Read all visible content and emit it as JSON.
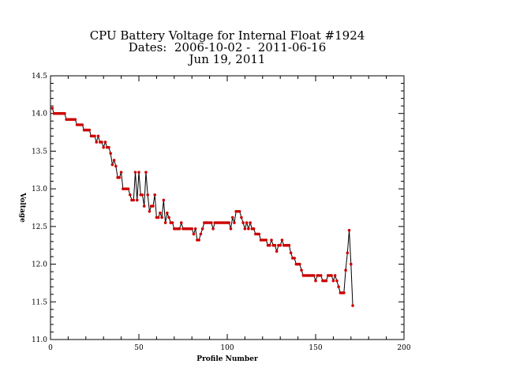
{
  "chart_data": {
    "type": "line",
    "title_lines": [
      "CPU Battery Voltage for Internal Float #1924",
      "Dates:  2006-10-02 -  2011-06-16",
      "Jun 19, 2011"
    ],
    "xlabel": "Profile Number",
    "ylabel": "Voltage",
    "xlim": [
      0,
      200
    ],
    "ylim": [
      11.0,
      14.5
    ],
    "x_ticks": [
      0,
      50,
      100,
      150,
      200
    ],
    "y_ticks": [
      11.0,
      11.5,
      12.0,
      12.5,
      13.0,
      13.5,
      14.0,
      14.5
    ],
    "x_tick_labels": [
      "0",
      "50",
      "100",
      "150",
      "200"
    ],
    "y_tick_labels": [
      "11.0",
      "11.5",
      "12.0",
      "12.5",
      "13.0",
      "13.5",
      "14.0",
      "14.5"
    ],
    "grid": false,
    "line_color": "#000000",
    "marker_color": "#cc0000",
    "series": [
      {
        "x": [
          1,
          2,
          3,
          4,
          5,
          6,
          7,
          8,
          9,
          10,
          11,
          12,
          13,
          14,
          15,
          16,
          17,
          18,
          19,
          20,
          21,
          22,
          23,
          24,
          25,
          26,
          27,
          28,
          29,
          30,
          31,
          32,
          33,
          34,
          35,
          36,
          37,
          38,
          39,
          40,
          41,
          42,
          43,
          44,
          45,
          46,
          47,
          48,
          49,
          50,
          51,
          52,
          53,
          54,
          55,
          56,
          57,
          58,
          59,
          60,
          61,
          62,
          63,
          64,
          65,
          66,
          67,
          68,
          69,
          70,
          71,
          72,
          73,
          74,
          75,
          76,
          77,
          78,
          79,
          80,
          81,
          82,
          83,
          84,
          85,
          86,
          87,
          88,
          89,
          90,
          91,
          92,
          93,
          94,
          95,
          96,
          97,
          98,
          99,
          100,
          101,
          102,
          103,
          104,
          105,
          106,
          107,
          108,
          109,
          110,
          111,
          112,
          113,
          114,
          115,
          116,
          117,
          118,
          119,
          120,
          121,
          122,
          123,
          124,
          125,
          126,
          127,
          128,
          129,
          130,
          131,
          132,
          133,
          134,
          135,
          136,
          137,
          138,
          139,
          140,
          141,
          142,
          143,
          144,
          145,
          146,
          147,
          148,
          149,
          150,
          151,
          152,
          153,
          154,
          155,
          156,
          157,
          158,
          159,
          160,
          161,
          162,
          163,
          164,
          165,
          166,
          167,
          168,
          169,
          170,
          171
        ],
        "y": [
          14.07,
          14.0,
          14.0,
          14.0,
          14.0,
          14.0,
          14.0,
          14.0,
          13.92,
          13.92,
          13.92,
          13.92,
          13.92,
          13.92,
          13.85,
          13.85,
          13.85,
          13.85,
          13.78,
          13.78,
          13.78,
          13.78,
          13.7,
          13.7,
          13.7,
          13.62,
          13.7,
          13.62,
          13.62,
          13.55,
          13.62,
          13.55,
          13.55,
          13.47,
          13.32,
          13.38,
          13.3,
          13.15,
          13.15,
          13.22,
          13.0,
          13.0,
          13.0,
          13.0,
          12.92,
          12.85,
          12.85,
          13.22,
          12.85,
          13.22,
          12.92,
          12.92,
          12.77,
          13.22,
          12.92,
          12.7,
          12.77,
          12.77,
          12.92,
          12.62,
          12.62,
          12.68,
          12.62,
          12.85,
          12.55,
          12.68,
          12.62,
          12.55,
          12.55,
          12.47,
          12.47,
          12.47,
          12.47,
          12.55,
          12.47,
          12.47,
          12.47,
          12.47,
          12.47,
          12.47,
          12.4,
          12.47,
          12.32,
          12.32,
          12.4,
          12.47,
          12.55,
          12.55,
          12.55,
          12.55,
          12.55,
          12.47,
          12.55,
          12.55,
          12.55,
          12.55,
          12.55,
          12.55,
          12.55,
          12.55,
          12.55,
          12.47,
          12.62,
          12.55,
          12.7,
          12.7,
          12.7,
          12.62,
          12.55,
          12.47,
          12.55,
          12.47,
          12.55,
          12.47,
          12.47,
          12.4,
          12.4,
          12.4,
          12.32,
          12.32,
          12.32,
          12.32,
          12.25,
          12.25,
          12.32,
          12.25,
          12.25,
          12.17,
          12.25,
          12.25,
          12.32,
          12.25,
          12.25,
          12.25,
          12.25,
          12.15,
          12.08,
          12.08,
          12.0,
          12.0,
          12.0,
          11.92,
          11.85,
          11.85,
          11.85,
          11.85,
          11.85,
          11.85,
          11.85,
          11.78,
          11.85,
          11.85,
          11.85,
          11.78,
          11.78,
          11.78,
          11.85,
          11.85,
          11.85,
          11.78,
          11.85,
          11.78,
          11.7,
          11.62,
          11.62,
          11.62,
          11.92,
          12.15,
          12.45,
          12.0,
          11.45
        ]
      }
    ]
  }
}
